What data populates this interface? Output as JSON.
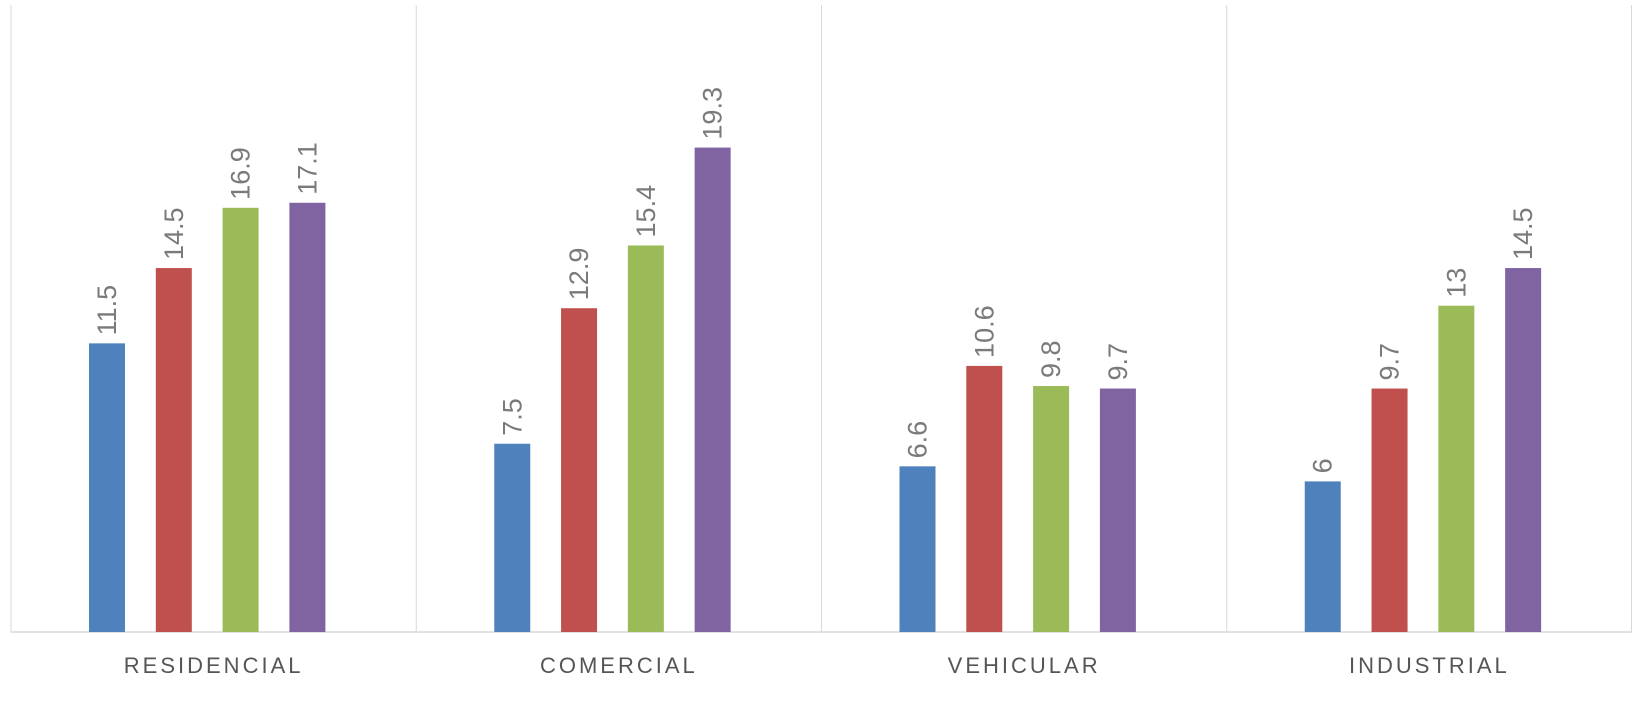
{
  "chart_data": {
    "type": "bar",
    "categories": [
      "RESIDENCIAL",
      "COMERCIAL",
      "VEHICULAR",
      "INDUSTRIAL"
    ],
    "series": [
      {
        "values": [
          11.5,
          7.5,
          6.6,
          6
        ],
        "color": "#4f81bd"
      },
      {
        "values": [
          14.5,
          12.9,
          10.6,
          9.7
        ],
        "color": "#c0504d"
      },
      {
        "values": [
          16.9,
          15.4,
          9.8,
          13
        ],
        "color": "#9bbb59"
      },
      {
        "values": [
          17.1,
          19.3,
          9.7,
          14.5
        ],
        "color": "#8064a2"
      }
    ],
    "data_label_text": [
      [
        "11.5",
        "7.5",
        "6.6",
        "6"
      ],
      [
        "14.5",
        "12.9",
        "10.6",
        "9.7"
      ],
      [
        "16.9",
        "15.4",
        "9.8",
        "13"
      ],
      [
        "17.1",
        "19.3",
        "9.7",
        "14.5"
      ]
    ],
    "ylim": [
      0,
      25
    ],
    "title": "",
    "xlabel": "",
    "ylabel": "",
    "gridlines": "vertical category separators",
    "legend": "none",
    "data_labels": "rotated vertical above bars"
  }
}
